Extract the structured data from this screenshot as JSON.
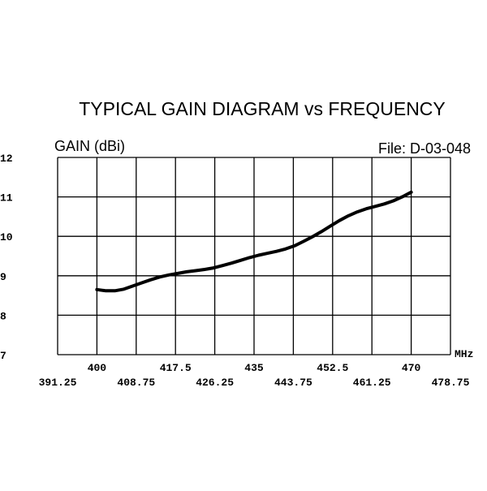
{
  "chart_data": {
    "type": "line",
    "title": "TYPICAL GAIN DIAGRAM vs FREQUENCY",
    "ylabel": "GAIN (dBi)",
    "file_label": "File:  D-03-048",
    "xunit": "MHz",
    "xlim": [
      391.25,
      478.75
    ],
    "ylim": [
      7,
      12
    ],
    "grid": true,
    "x_ticks_upper": [
      "400",
      "417.5",
      "435",
      "452.5",
      "470"
    ],
    "x_ticks_lower": [
      "391.25",
      "408.75",
      "426.25",
      "443.75",
      "461.25",
      "478.75"
    ],
    "y_ticks": [
      "12",
      "11",
      "10",
      "9",
      "8",
      "7"
    ],
    "series": [
      {
        "x": [
          400,
          402,
          404,
          406,
          408,
          410,
          412,
          414,
          416,
          418,
          420,
          422,
          424,
          426,
          428,
          430,
          432,
          434,
          436,
          438,
          440,
          442,
          444,
          446,
          448,
          450,
          452,
          454,
          456,
          458,
          460,
          462,
          464,
          466,
          468,
          470
        ],
        "y": [
          8.65,
          8.62,
          8.62,
          8.66,
          8.74,
          8.82,
          8.9,
          8.97,
          9.02,
          9.06,
          9.1,
          9.13,
          9.16,
          9.2,
          9.26,
          9.32,
          9.39,
          9.46,
          9.52,
          9.57,
          9.62,
          9.68,
          9.76,
          9.87,
          9.99,
          10.12,
          10.26,
          10.4,
          10.52,
          10.62,
          10.7,
          10.76,
          10.82,
          10.9,
          11.0,
          11.12
        ]
      }
    ]
  }
}
